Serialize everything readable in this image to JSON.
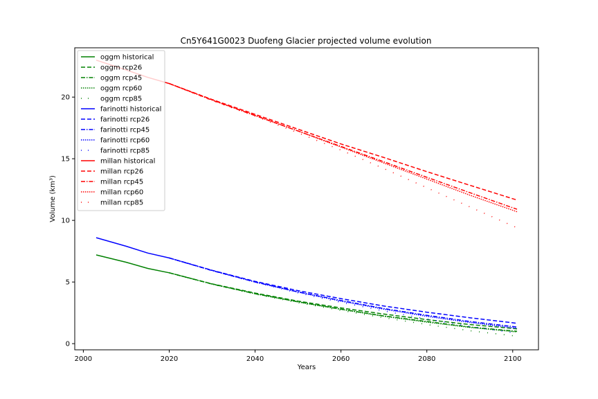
{
  "chart_data": {
    "type": "line",
    "title": "Cn5Y641G0023 Duofeng Glacier projected volume evolution",
    "xlabel": "Years",
    "ylabel": "Volume (km³)",
    "xlim": [
      1998,
      2106
    ],
    "ylim": [
      -0.5,
      24.0
    ],
    "xticks": [
      2000,
      2020,
      2040,
      2060,
      2080,
      2100
    ],
    "yticks": [
      0,
      5,
      10,
      15,
      20
    ],
    "grid": false,
    "legend_position": "upper-left",
    "series": [
      {
        "name": "oggm historical",
        "color": "#008000",
        "dash": "solid",
        "x": [
          2003,
          2010,
          2015,
          2020
        ],
        "y": [
          7.2,
          6.6,
          6.1,
          5.75
        ]
      },
      {
        "name": "oggm rcp26",
        "color": "#008000",
        "dash": "dashed",
        "x": [
          2020,
          2030,
          2040,
          2050,
          2060,
          2070,
          2080,
          2090,
          2101
        ],
        "y": [
          5.75,
          4.85,
          4.1,
          3.45,
          2.9,
          2.4,
          1.95,
          1.55,
          1.2
        ]
      },
      {
        "name": "oggm rcp45",
        "color": "#008000",
        "dash": "dashdot",
        "x": [
          2020,
          2030,
          2040,
          2050,
          2060,
          2070,
          2080,
          2090,
          2101
        ],
        "y": [
          5.75,
          4.83,
          4.05,
          3.4,
          2.8,
          2.25,
          1.8,
          1.35,
          1.0
        ]
      },
      {
        "name": "oggm rcp60",
        "color": "#008000",
        "dash": "dotted",
        "x": [
          2020,
          2030,
          2040,
          2050,
          2060,
          2070,
          2080,
          2090,
          2101
        ],
        "y": [
          5.75,
          4.84,
          4.05,
          3.38,
          2.78,
          2.22,
          1.75,
          1.32,
          0.95
        ]
      },
      {
        "name": "oggm rcp85",
        "color": "#008000",
        "dash": "sparse",
        "x": [
          2020,
          2030,
          2040,
          2050,
          2060,
          2070,
          2080,
          2090,
          2101
        ],
        "y": [
          5.75,
          4.82,
          4.02,
          3.32,
          2.7,
          2.1,
          1.55,
          1.05,
          0.6
        ]
      },
      {
        "name": "farinotti historical",
        "color": "#0000ff",
        "dash": "solid",
        "x": [
          2003,
          2010,
          2015,
          2020
        ],
        "y": [
          8.6,
          7.9,
          7.35,
          6.95
        ]
      },
      {
        "name": "farinotti rcp26",
        "color": "#0000ff",
        "dash": "dashed",
        "x": [
          2020,
          2030,
          2040,
          2050,
          2060,
          2070,
          2080,
          2090,
          2101
        ],
        "y": [
          6.95,
          5.95,
          5.05,
          4.3,
          3.65,
          3.05,
          2.55,
          2.1,
          1.65
        ]
      },
      {
        "name": "farinotti rcp45",
        "color": "#0000ff",
        "dash": "dashdot",
        "x": [
          2020,
          2030,
          2040,
          2050,
          2060,
          2070,
          2080,
          2090,
          2101
        ],
        "y": [
          6.95,
          5.93,
          5.0,
          4.2,
          3.5,
          2.85,
          2.3,
          1.8,
          1.35
        ]
      },
      {
        "name": "farinotti rcp60",
        "color": "#0000ff",
        "dash": "dotted",
        "x": [
          2020,
          2030,
          2040,
          2050,
          2060,
          2070,
          2080,
          2090,
          2101
        ],
        "y": [
          6.95,
          5.94,
          5.0,
          4.18,
          3.45,
          2.8,
          2.22,
          1.72,
          1.25
        ]
      },
      {
        "name": "farinotti rcp85",
        "color": "#0000ff",
        "dash": "sparse",
        "x": [
          2020,
          2030,
          2040,
          2050,
          2060,
          2070,
          2080,
          2090,
          2101
        ],
        "y": [
          6.95,
          5.92,
          4.98,
          4.12,
          3.35,
          2.65,
          2.0,
          1.4,
          0.85
        ]
      },
      {
        "name": "millan historical",
        "color": "#ff0000",
        "dash": "solid",
        "x": [
          2003,
          2010,
          2015,
          2020
        ],
        "y": [
          23.0,
          22.2,
          21.6,
          21.1
        ]
      },
      {
        "name": "millan rcp26",
        "color": "#ff0000",
        "dash": "dashed",
        "x": [
          2020,
          2030,
          2040,
          2050,
          2060,
          2070,
          2080,
          2090,
          2101
        ],
        "y": [
          21.1,
          19.8,
          18.6,
          17.4,
          16.2,
          15.1,
          13.95,
          12.85,
          11.65
        ]
      },
      {
        "name": "millan rcp45",
        "color": "#ff0000",
        "dash": "dashdot",
        "x": [
          2020,
          2030,
          2040,
          2050,
          2060,
          2070,
          2080,
          2090,
          2101
        ],
        "y": [
          21.1,
          19.75,
          18.5,
          17.25,
          16.0,
          14.75,
          13.5,
          12.25,
          10.9
        ]
      },
      {
        "name": "millan rcp60",
        "color": "#ff0000",
        "dash": "dotted",
        "x": [
          2020,
          2030,
          2040,
          2050,
          2060,
          2070,
          2080,
          2090,
          2101
        ],
        "y": [
          21.1,
          19.77,
          18.52,
          17.25,
          15.95,
          14.65,
          13.35,
          12.05,
          10.7
        ]
      },
      {
        "name": "millan rcp85",
        "color": "#ff0000",
        "dash": "sparse",
        "x": [
          2020,
          2030,
          2040,
          2050,
          2060,
          2070,
          2080,
          2090,
          2101
        ],
        "y": [
          21.1,
          19.72,
          18.45,
          17.1,
          15.7,
          14.2,
          12.65,
          11.1,
          9.4
        ]
      }
    ]
  }
}
